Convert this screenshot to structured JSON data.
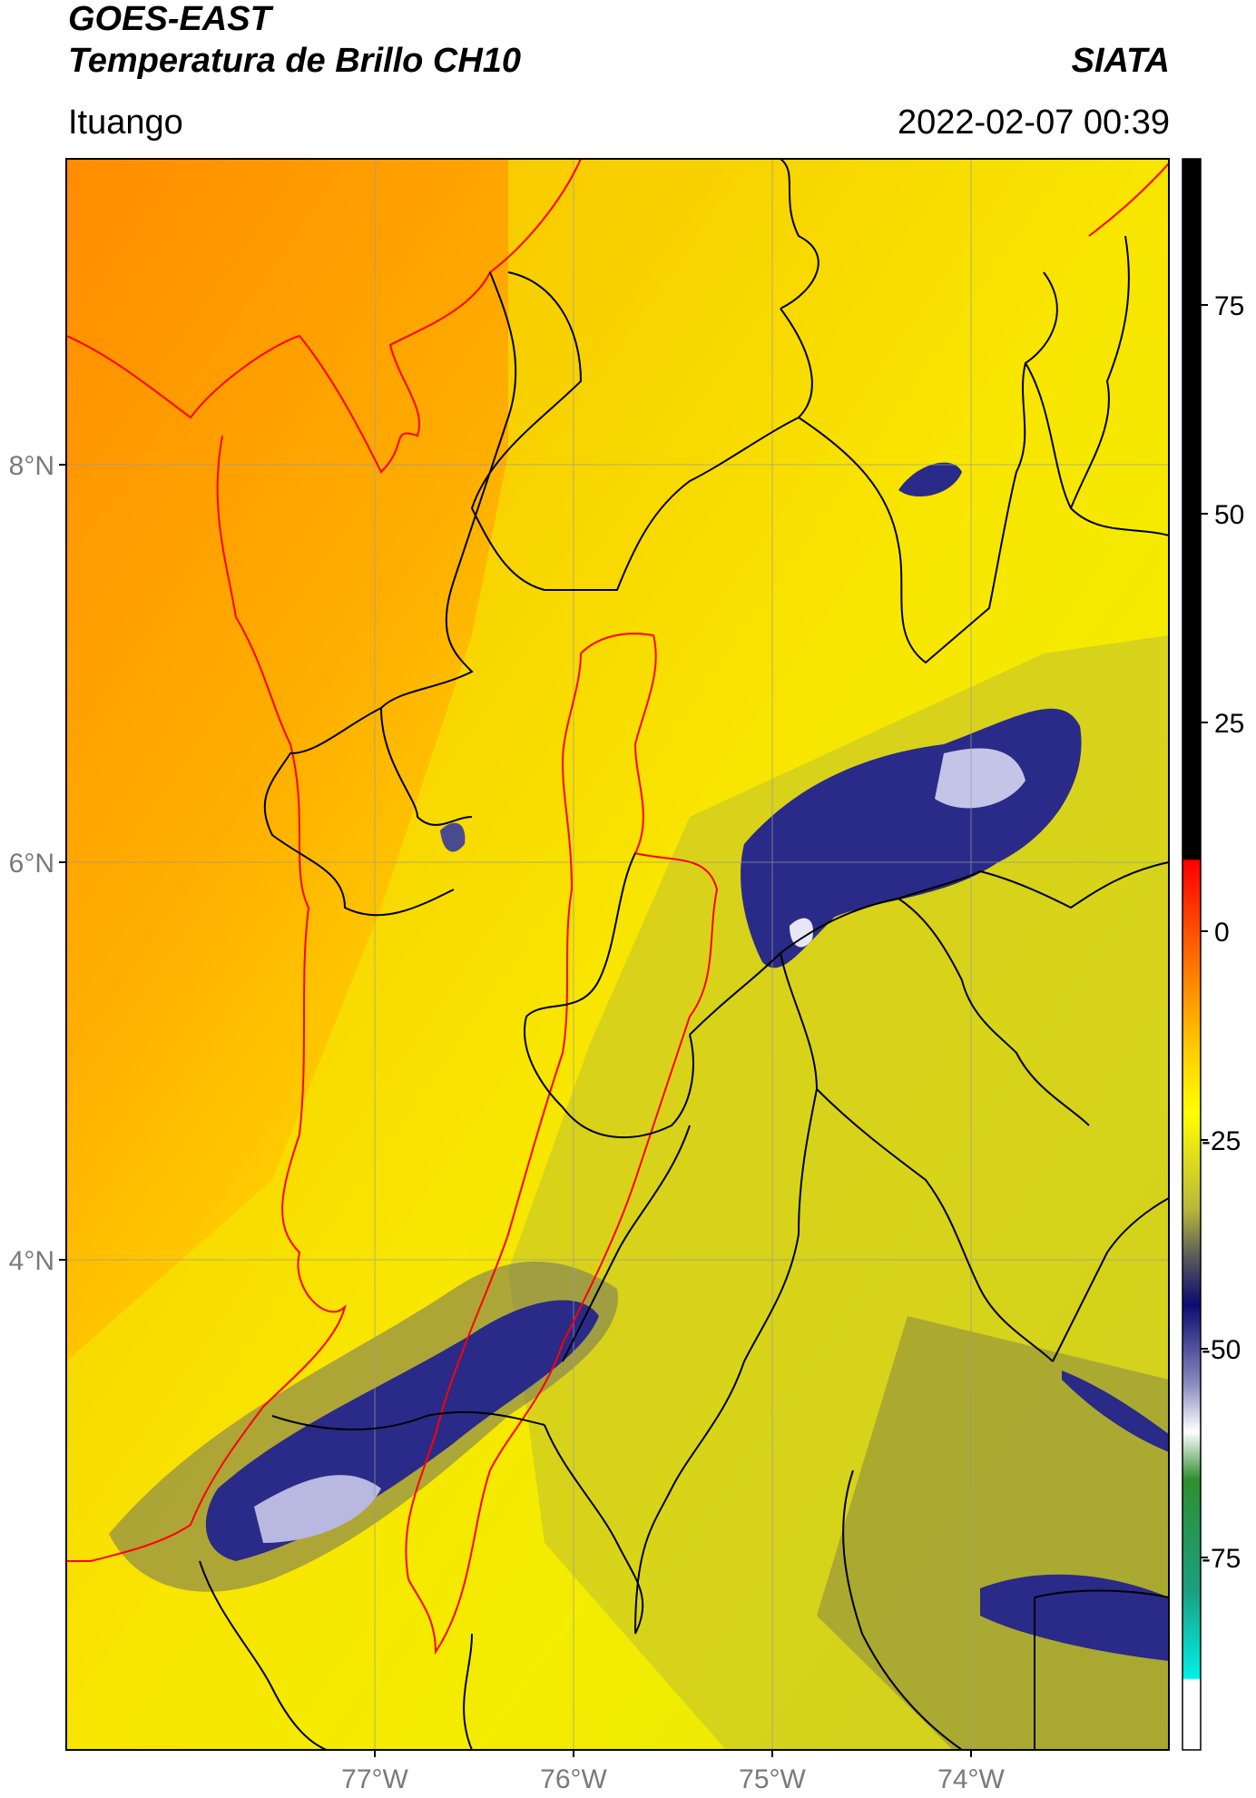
{
  "header": {
    "satellite": "GOES-EAST",
    "product": "Temperatura de Brillo CH10",
    "org": "SIATA",
    "region": "Ituango",
    "datetime": "2022-02-07 00:39"
  },
  "axes": {
    "lat_labels": [
      "8°N",
      "6°N",
      "4°N"
    ],
    "lon_labels": [
      "77°W",
      "76°W",
      "75°W",
      "74°W"
    ],
    "gridlines": true
  },
  "colorbar": {
    "orientation": "vertical",
    "position": "right",
    "ticks": [
      "75",
      "50",
      "25",
      "0",
      "-25",
      "-50",
      "-75"
    ],
    "colors": {
      "warm_top": "#000000",
      "red": "#ff1a00",
      "orange": "#ff9a00",
      "yellow": "#ffff00",
      "olive": "#b5b53a",
      "grey": "#6a6a6a",
      "dark_blue": "#0c0c70",
      "white": "#ffffff",
      "green": "#2e8b2e",
      "cyan": "#00e8e0"
    }
  },
  "map_colors": {
    "sea_orange": "#ff9a00",
    "land_yellow": "#f4ef00",
    "cold_cloud_blue": "#2c2c8a",
    "coastline_red": "#ff0000",
    "boundary_black": "#000000"
  }
}
